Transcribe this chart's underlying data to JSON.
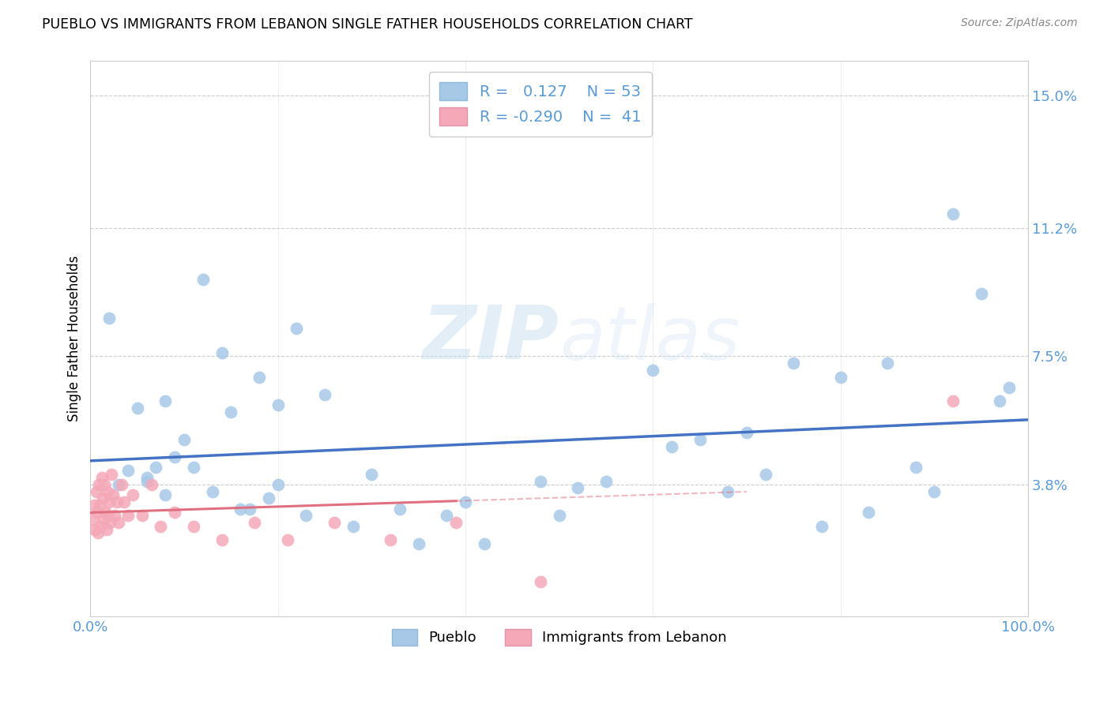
{
  "title": "PUEBLO VS IMMIGRANTS FROM LEBANON SINGLE FATHER HOUSEHOLDS CORRELATION CHART",
  "source": "Source: ZipAtlas.com",
  "ylabel": "Single Father Households",
  "xlim": [
    0,
    1.0
  ],
  "ylim": [
    0,
    0.16
  ],
  "yticks": [
    0.038,
    0.075,
    0.112,
    0.15
  ],
  "ytick_labels": [
    "3.8%",
    "7.5%",
    "11.2%",
    "15.0%"
  ],
  "xticks": [
    0.0,
    0.2,
    0.4,
    0.6,
    0.8,
    1.0
  ],
  "xtick_labels": [
    "0.0%",
    "",
    "",
    "",
    "",
    "100.0%"
  ],
  "blue_color": "#a8c8e8",
  "pink_color": "#f4a8b8",
  "blue_line_color": "#4472c4",
  "pink_line_color": "#e07080",
  "legend_blue_label": "Pueblo",
  "legend_pink_label": "Immigrants from Lebanon",
  "R_blue": 0.127,
  "N_blue": 53,
  "R_pink": -0.29,
  "N_pink": 41,
  "blue_scatter_x": [
    0.02,
    0.03,
    0.04,
    0.05,
    0.06,
    0.07,
    0.08,
    0.09,
    0.1,
    0.11,
    0.12,
    0.13,
    0.14,
    0.15,
    0.16,
    0.17,
    0.18,
    0.19,
    0.2,
    0.22,
    0.23,
    0.25,
    0.28,
    0.3,
    0.33,
    0.35,
    0.38,
    0.4,
    0.42,
    0.48,
    0.5,
    0.52,
    0.55,
    0.6,
    0.62,
    0.65,
    0.68,
    0.7,
    0.72,
    0.75,
    0.78,
    0.8,
    0.83,
    0.85,
    0.88,
    0.9,
    0.92,
    0.95,
    0.97,
    0.98,
    0.06,
    0.08,
    0.2
  ],
  "blue_scatter_y": [
    0.086,
    0.038,
    0.042,
    0.06,
    0.039,
    0.043,
    0.062,
    0.046,
    0.051,
    0.043,
    0.097,
    0.036,
    0.076,
    0.059,
    0.031,
    0.031,
    0.069,
    0.034,
    0.061,
    0.083,
    0.029,
    0.064,
    0.026,
    0.041,
    0.031,
    0.021,
    0.029,
    0.033,
    0.021,
    0.039,
    0.029,
    0.037,
    0.039,
    0.071,
    0.049,
    0.051,
    0.036,
    0.053,
    0.041,
    0.073,
    0.026,
    0.069,
    0.03,
    0.073,
    0.043,
    0.036,
    0.116,
    0.093,
    0.062,
    0.066,
    0.04,
    0.035,
    0.038
  ],
  "pink_scatter_x": [
    0.002,
    0.004,
    0.005,
    0.006,
    0.007,
    0.008,
    0.009,
    0.01,
    0.011,
    0.012,
    0.013,
    0.014,
    0.015,
    0.016,
    0.017,
    0.018,
    0.019,
    0.02,
    0.021,
    0.022,
    0.024,
    0.026,
    0.028,
    0.03,
    0.033,
    0.036,
    0.04,
    0.045,
    0.055,
    0.065,
    0.075,
    0.09,
    0.11,
    0.14,
    0.175,
    0.21,
    0.26,
    0.32,
    0.39,
    0.48,
    0.92
  ],
  "pink_scatter_y": [
    0.028,
    0.032,
    0.025,
    0.036,
    0.03,
    0.024,
    0.038,
    0.032,
    0.026,
    0.04,
    0.034,
    0.028,
    0.038,
    0.03,
    0.025,
    0.036,
    0.029,
    0.033,
    0.027,
    0.041,
    0.035,
    0.029,
    0.033,
    0.027,
    0.038,
    0.033,
    0.029,
    0.035,
    0.029,
    0.038,
    0.026,
    0.03,
    0.026,
    0.022,
    0.027,
    0.022,
    0.027,
    0.022,
    0.027,
    0.01,
    0.062
  ],
  "watermark_zip": "ZIP",
  "watermark_atlas": "atlas",
  "background_color": "#ffffff",
  "grid_color": "#cccccc",
  "tick_color": "#5b9bd5",
  "axis_color": "#cccccc"
}
